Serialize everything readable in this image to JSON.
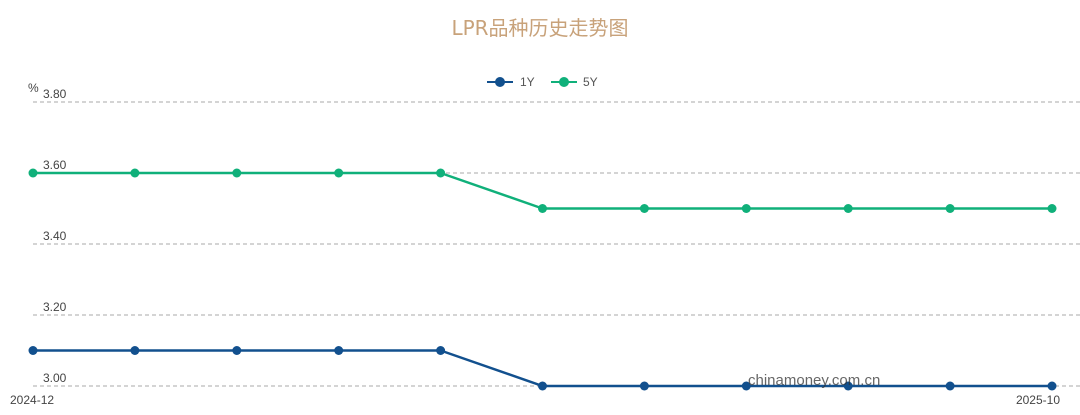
{
  "chart_data": {
    "type": "line",
    "title": "LPR品种历史走势图",
    "y_unit": "%",
    "ylim": [
      3.0,
      3.8
    ],
    "y_ticks": [
      "3.00",
      "3.20",
      "3.40",
      "3.60",
      "3.80"
    ],
    "grid": true,
    "legend_position": "top-center",
    "x": [
      "2024-12",
      "2025-01",
      "2025-02",
      "2025-03",
      "2025-04",
      "2025-05",
      "2025-06",
      "2025-07",
      "2025-08",
      "2025-09",
      "2025-10"
    ],
    "x_tick_labels": [
      "2024-12",
      "2025-10"
    ],
    "series": [
      {
        "name": "1Y",
        "color": "#12508e",
        "values": [
          3.1,
          3.1,
          3.1,
          3.1,
          3.1,
          3.0,
          3.0,
          3.0,
          3.0,
          3.0,
          3.0
        ]
      },
      {
        "name": "5Y",
        "color": "#10b07a",
        "values": [
          3.6,
          3.6,
          3.6,
          3.6,
          3.6,
          3.5,
          3.5,
          3.5,
          3.5,
          3.5,
          3.5
        ]
      }
    ],
    "watermark": "chinamoney.com.cn"
  }
}
